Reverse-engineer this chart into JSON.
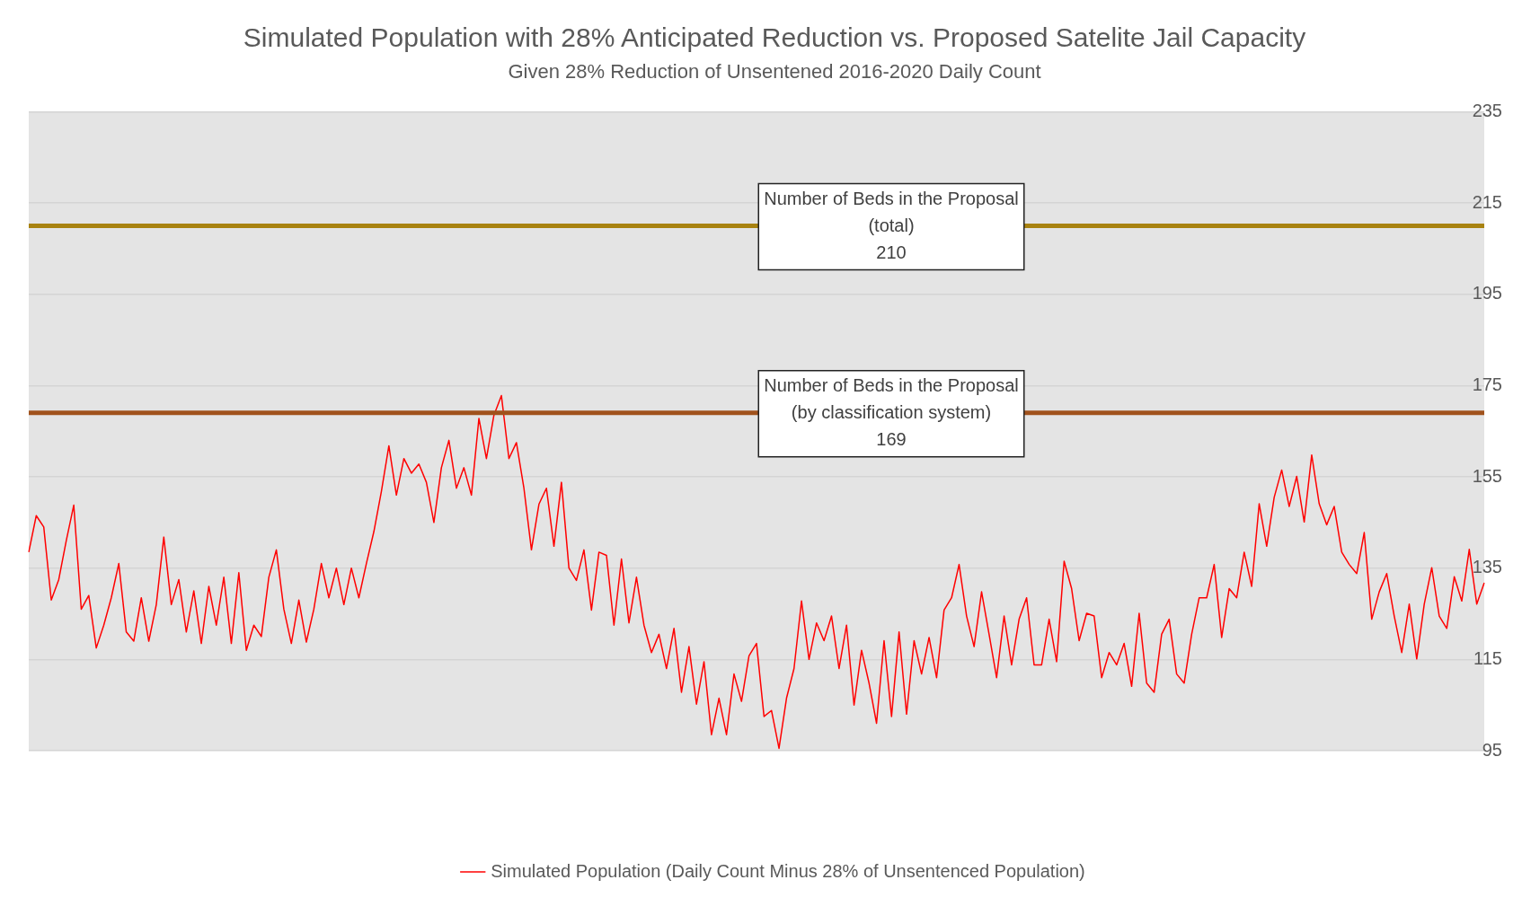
{
  "chart_data": {
    "type": "line",
    "title": "Simulated Population with 28% Anticipated Reduction vs. Proposed Satelite Jail Capacity",
    "subtitle": "Given 28% Reduction of Unsentened 2016-2020 Daily Count",
    "categories": [
      null,
      null,
      null,
      null,
      null,
      null,
      null,
      null,
      null,
      null,
      null,
      null,
      null,
      null,
      null,
      null,
      null,
      null,
      null,
      null,
      null,
      null,
      null,
      null,
      null,
      null,
      null,
      null,
      null,
      null,
      null,
      null,
      null,
      null,
      null,
      null,
      null,
      null,
      null,
      null,
      null,
      null,
      null,
      null,
      null,
      null,
      null,
      null,
      null,
      null,
      null,
      null,
      null,
      null,
      null,
      null,
      null,
      null,
      null,
      null,
      null,
      null,
      null,
      null,
      null,
      null,
      null,
      null,
      null,
      null,
      null,
      null,
      null,
      null,
      null,
      null,
      null,
      null,
      null,
      null,
      null,
      null,
      null,
      null,
      null,
      null,
      null,
      null,
      null,
      null,
      null,
      null,
      null,
      null,
      null,
      null,
      null,
      null,
      null,
      null,
      null,
      null,
      null,
      null,
      null,
      null,
      null,
      null,
      null,
      null,
      null,
      null,
      null,
      null,
      null,
      null,
      null,
      null,
      null,
      null,
      null,
      null,
      null,
      null,
      null,
      null,
      null,
      null,
      null,
      null,
      null,
      null,
      null,
      null,
      null,
      null,
      null,
      null,
      null,
      null,
      null,
      null,
      null,
      null,
      null,
      null,
      null,
      null,
      null,
      null,
      null,
      null,
      null,
      null,
      null,
      null,
      null,
      null,
      null,
      null,
      null,
      null,
      null,
      null,
      null,
      null,
      null,
      null,
      null,
      null,
      null,
      null,
      null,
      null,
      null,
      null,
      null,
      null,
      null,
      null,
      null,
      null,
      null,
      null,
      null,
      null,
      null,
      null,
      null,
      null,
      null,
      null,
      null,
      null,
      null
    ],
    "series": [
      {
        "name": "Simulated Population (Daily Count Minus 28% of Unsentenced Population)",
        "color": "#ff0000",
        "values": [
          138.5,
          146.5,
          144,
          128,
          132.5,
          141,
          148.8,
          126,
          129,
          117.5,
          122.5,
          128.5,
          136,
          121,
          119,
          128.5,
          119,
          127,
          141.8,
          127,
          132.5,
          121,
          130,
          118.5,
          131,
          122.5,
          133,
          118.5,
          134,
          117,
          122.5,
          120,
          133,
          139,
          126,
          118.5,
          128,
          118.8,
          126,
          136,
          128.5,
          135,
          127,
          135,
          128.5,
          136,
          143,
          151.8,
          161.8,
          151,
          159,
          155.8,
          157.8,
          153.8,
          145,
          157,
          163,
          152.5,
          157,
          151,
          167.8,
          159,
          168.5,
          172.8,
          159,
          162.5,
          152.5,
          139,
          149,
          152.5,
          139.8,
          153.8,
          135,
          132.3,
          139,
          125.8,
          138.5,
          137.8,
          122.5,
          137,
          123,
          133,
          122.5,
          116.5,
          120.5,
          113,
          121.8,
          107.8,
          117.8,
          105.2,
          114.5,
          98.5,
          106.5,
          98.5,
          111.8,
          105.8,
          115.8,
          118.5,
          102.5,
          103.8,
          95.5,
          106.5,
          113,
          127.8,
          115,
          123,
          119.1,
          124.5,
          113,
          122.5,
          105,
          117,
          109.8,
          101,
          119.1,
          102.5,
          121,
          103,
          119.1,
          111.8,
          119.8,
          111,
          125.8,
          128.5,
          135.8,
          124.5,
          117.8,
          129.8,
          120.5,
          111,
          124.5,
          113.8,
          123.8,
          128.5,
          113.8,
          113.8,
          123.8,
          114.5,
          136.5,
          130.5,
          119.1,
          125.1,
          124.5,
          111,
          116.5,
          113.8,
          118.5,
          109.1,
          125.1,
          109.8,
          107.8,
          120.5,
          123.8,
          111.8,
          109.8,
          120.5,
          128.5,
          128.5,
          135.8,
          119.8,
          130.5,
          128.5,
          138.5,
          131,
          149.1,
          139.8,
          150.5,
          156.5,
          148.5,
          155.1,
          145.1,
          159.8,
          149.1,
          144.5,
          148.5,
          138.5,
          135.8,
          133.8,
          142.8,
          123.8,
          129.8,
          133.8,
          124.5,
          116.5,
          127.1,
          115.1,
          127.1,
          135.1,
          124.5,
          121.8,
          133.1,
          127.8,
          139.1,
          127.1,
          131.8
        ]
      }
    ],
    "ylim": [
      95,
      235
    ],
    "yticks": [
      95,
      115,
      135,
      155,
      175,
      195,
      215,
      235
    ],
    "grid": "y",
    "legend": "bottom",
    "marker": "none",
    "line_style": "solid",
    "ref_lines": [
      {
        "axis": "y",
        "value": 210,
        "label": "Number of Beds in the Proposal\n(total)\n210",
        "color": "#a88210"
      },
      {
        "axis": "y",
        "value": 169,
        "label": "Number of Beds in the Proposal\n(by classification system)\n169",
        "color": "#a0521c"
      }
    ]
  }
}
